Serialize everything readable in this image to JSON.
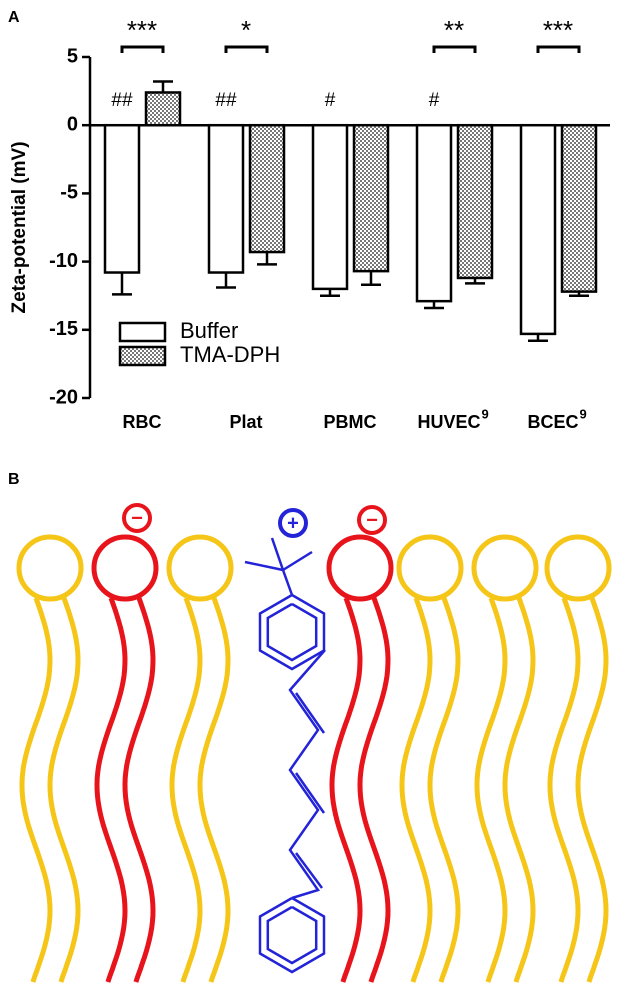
{
  "chart_data": {
    "type": "bar",
    "panel_label": "A",
    "y_label": "Zeta-potential (mV)",
    "categories": [
      "RBC",
      "Plat",
      "PBMC",
      "HUVEC",
      "BCEC"
    ],
    "category_superscripts": [
      null,
      null,
      null,
      "9",
      "9"
    ],
    "series": [
      {
        "name": "Buffer",
        "color": "#ffffff",
        "values": [
          -10.8,
          -10.8,
          -12.0,
          -12.9,
          -15.3
        ],
        "errors": [
          1.6,
          1.1,
          0.5,
          0.5,
          0.5
        ]
      },
      {
        "name": "TMA-DPH",
        "color": "#999999",
        "values": [
          2.4,
          -9.3,
          -10.7,
          -11.2,
          -12.2
        ],
        "errors": [
          0.8,
          0.9,
          1.0,
          0.4,
          0.3
        ]
      }
    ],
    "significance": [
      "***",
      "*",
      null,
      "**",
      "***"
    ],
    "hash_marks": [
      "##",
      "##",
      "#",
      "#",
      null
    ],
    "ylim": [
      -20,
      5
    ],
    "yticks": [
      5,
      0,
      -5,
      -10,
      -15,
      -20
    ],
    "legend": "lower-left"
  },
  "panel_b": {
    "label": "B",
    "charges": [
      "−",
      "+",
      "−"
    ]
  }
}
